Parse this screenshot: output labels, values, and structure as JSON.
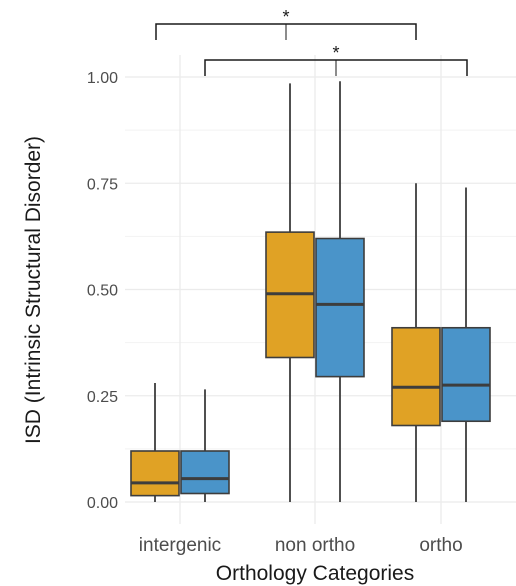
{
  "chart_data": {
    "type": "box",
    "xlabel": "Orthology Categories",
    "ylabel": "ISD (Intrinsic Structural Disorder)",
    "ylim": [
      0,
      1.05
    ],
    "yticks": [
      0.0,
      0.25,
      0.5,
      0.75,
      1.0
    ],
    "ytick_labels": [
      "0.00",
      "0.25",
      "0.50",
      "0.75",
      "1.00"
    ],
    "categories": [
      "intergenic",
      "non ortho",
      "ortho"
    ],
    "grid": true,
    "legend": "none",
    "series": [
      {
        "color": "#e0a225",
        "boxes": [
          {
            "min": 0.0,
            "q1": 0.015,
            "median": 0.045,
            "q3": 0.12,
            "max": 0.28
          },
          {
            "min": 0.0,
            "q1": 0.34,
            "median": 0.49,
            "q3": 0.635,
            "max": 0.985
          },
          {
            "min": 0.0,
            "q1": 0.18,
            "median": 0.27,
            "q3": 0.41,
            "max": 0.75
          }
        ]
      },
      {
        "color": "#4a94c9",
        "boxes": [
          {
            "min": 0.0,
            "q1": 0.02,
            "median": 0.055,
            "q3": 0.12,
            "max": 0.265
          },
          {
            "min": 0.0,
            "q1": 0.295,
            "median": 0.465,
            "q3": 0.62,
            "max": 0.99
          },
          {
            "min": 0.0,
            "q1": 0.19,
            "median": 0.275,
            "q3": 0.41,
            "max": 0.74
          }
        ]
      }
    ],
    "significance": [
      {
        "from": "intergenic",
        "to": "non ortho",
        "label": "*"
      },
      {
        "from": "intergenic",
        "to": "ortho",
        "label": "*"
      }
    ]
  }
}
